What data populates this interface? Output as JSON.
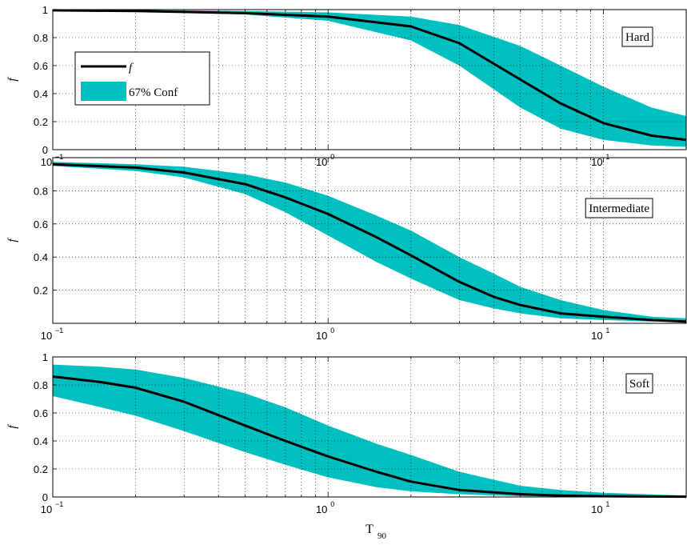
{
  "chart_data": [
    {
      "type": "area",
      "panel_label": "Hard",
      "ylabel": "f",
      "xlabel": "",
      "xscale": "log",
      "xlim": [
        0.1,
        20
      ],
      "ylim": [
        0,
        1
      ],
      "yticks": [
        "0",
        "0.2",
        "0.4",
        "0.6",
        "0.8",
        "1"
      ],
      "xticks": [
        {
          "base": "10",
          "exp": "−1"
        },
        {
          "base": "10",
          "exp": "0"
        },
        {
          "base": "10",
          "exp": "1"
        }
      ],
      "grid": true,
      "legend": {
        "placement": "upper-left",
        "entries": [
          {
            "label": "f",
            "kind": "line",
            "color": "#000000"
          },
          {
            "label": "67% Conf",
            "kind": "patch",
            "color": "#00bfbf"
          }
        ]
      },
      "series": [
        {
          "name": "f",
          "x": [
            0.1,
            0.2,
            0.5,
            1,
            2,
            3,
            5,
            7,
            10,
            15,
            20
          ],
          "y": [
            0.995,
            0.99,
            0.975,
            0.95,
            0.88,
            0.76,
            0.5,
            0.33,
            0.19,
            0.1,
            0.07
          ]
        }
      ],
      "band": {
        "name": "67% Conf",
        "x": [
          0.1,
          0.2,
          0.5,
          1,
          2,
          3,
          5,
          7,
          10,
          15,
          20
        ],
        "lower": [
          0.99,
          0.985,
          0.965,
          0.92,
          0.78,
          0.6,
          0.3,
          0.15,
          0.07,
          0.03,
          0.02
        ],
        "upper": [
          0.998,
          0.997,
          0.99,
          0.98,
          0.95,
          0.89,
          0.74,
          0.6,
          0.45,
          0.3,
          0.24
        ]
      }
    },
    {
      "type": "area",
      "panel_label": "Intermediate",
      "ylabel": "f",
      "xlabel": "",
      "xscale": "log",
      "xlim": [
        0.1,
        20
      ],
      "ylim": [
        0,
        1
      ],
      "yticks": [
        "",
        "0.2",
        "0.4",
        "0.6",
        "0.8",
        ""
      ],
      "xticks": [
        {
          "base": "10",
          "exp": "−1"
        },
        {
          "base": "10",
          "exp": "0"
        },
        {
          "base": "10",
          "exp": "1"
        }
      ],
      "grid": true,
      "series": [
        {
          "name": "f",
          "x": [
            0.1,
            0.2,
            0.3,
            0.5,
            0.7,
            1,
            1.5,
            2,
            3,
            4,
            5,
            7,
            10,
            15,
            20
          ],
          "y": [
            0.96,
            0.94,
            0.91,
            0.84,
            0.76,
            0.66,
            0.52,
            0.41,
            0.25,
            0.16,
            0.11,
            0.06,
            0.04,
            0.02,
            0.01
          ]
        }
      ],
      "band": {
        "name": "67% Conf",
        "x": [
          0.1,
          0.2,
          0.3,
          0.5,
          0.7,
          1,
          1.5,
          2,
          3,
          4,
          5,
          7,
          10,
          15,
          20
        ],
        "lower": [
          0.95,
          0.92,
          0.88,
          0.78,
          0.67,
          0.53,
          0.37,
          0.27,
          0.14,
          0.09,
          0.06,
          0.03,
          0.02,
          0.01,
          0.01
        ],
        "upper": [
          0.975,
          0.96,
          0.945,
          0.9,
          0.85,
          0.77,
          0.65,
          0.56,
          0.4,
          0.3,
          0.22,
          0.14,
          0.08,
          0.04,
          0.03
        ]
      }
    },
    {
      "type": "area",
      "panel_label": "Soft",
      "ylabel": "f",
      "xlabel": "T",
      "xlabel_sub": "90",
      "xscale": "log",
      "xlim": [
        0.1,
        20
      ],
      "ylim": [
        0,
        1
      ],
      "yticks": [
        "0",
        "0.2",
        "0.4",
        "0.6",
        "0.8",
        "1"
      ],
      "xticks": [
        {
          "base": "10",
          "exp": "−1"
        },
        {
          "base": "10",
          "exp": "0"
        },
        {
          "base": "10",
          "exp": "1"
        }
      ],
      "grid": true,
      "series": [
        {
          "name": "f",
          "x": [
            0.1,
            0.15,
            0.2,
            0.3,
            0.5,
            0.7,
            1,
            1.5,
            2,
            3,
            5,
            7,
            10,
            20
          ],
          "y": [
            0.86,
            0.82,
            0.78,
            0.68,
            0.51,
            0.4,
            0.29,
            0.18,
            0.11,
            0.05,
            0.02,
            0.01,
            0.005,
            0.002
          ]
        }
      ],
      "band": {
        "name": "67% Conf",
        "x": [
          0.1,
          0.15,
          0.2,
          0.3,
          0.5,
          0.7,
          1,
          1.5,
          2,
          3,
          5,
          7,
          10,
          20
        ],
        "lower": [
          0.72,
          0.64,
          0.58,
          0.47,
          0.32,
          0.23,
          0.14,
          0.07,
          0.04,
          0.02,
          0.005,
          0.003,
          0.002,
          0.001
        ],
        "upper": [
          0.945,
          0.93,
          0.91,
          0.85,
          0.74,
          0.64,
          0.51,
          0.38,
          0.3,
          0.18,
          0.08,
          0.05,
          0.03,
          0.01
        ]
      }
    }
  ],
  "colors": {
    "band": "#00bfbf",
    "line": "#000000",
    "grid": "#000000"
  }
}
